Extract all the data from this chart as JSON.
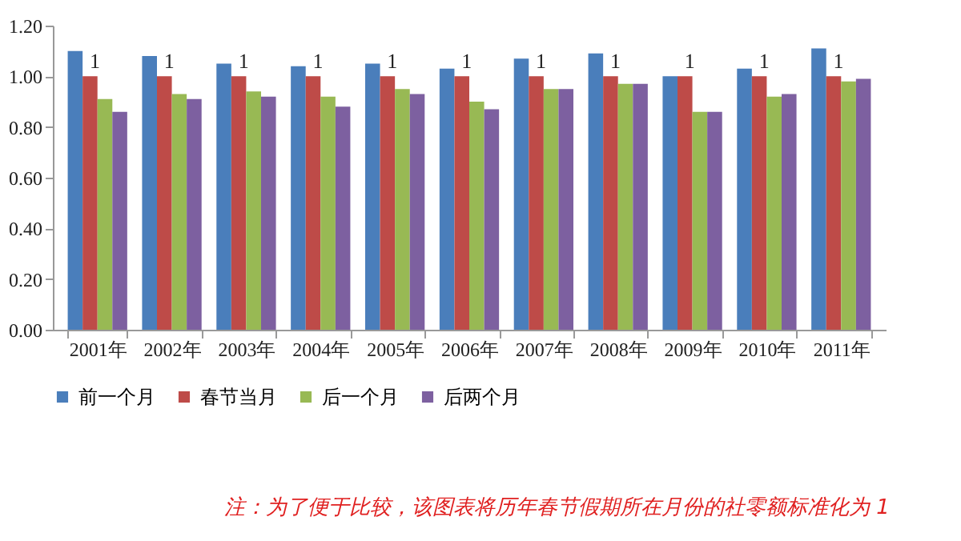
{
  "chart_data": {
    "type": "bar",
    "categories": [
      "2001年",
      "2002年",
      "2003年",
      "2004年",
      "2005年",
      "2006年",
      "2007年",
      "2008年",
      "2009年",
      "2010年",
      "2011年"
    ],
    "series": [
      {
        "name": "前一个月",
        "color": "#4a7ebb",
        "values": [
          1.1,
          1.08,
          1.05,
          1.04,
          1.05,
          1.03,
          1.07,
          1.09,
          1.0,
          1.03,
          1.11
        ]
      },
      {
        "name": "春节当月",
        "color": "#be4b48",
        "values": [
          1,
          1,
          1,
          1,
          1,
          1,
          1,
          1,
          1,
          1,
          1
        ],
        "value_labels": [
          "1",
          "1",
          "1",
          "1",
          "1",
          "1",
          "1",
          "1",
          "1",
          "1",
          "1"
        ]
      },
      {
        "name": "后一个月",
        "color": "#98b954",
        "values": [
          0.91,
          0.93,
          0.94,
          0.92,
          0.95,
          0.9,
          0.95,
          0.97,
          0.86,
          0.92,
          0.98
        ]
      },
      {
        "name": "后两个月",
        "color": "#7d60a0",
        "values": [
          0.86,
          0.91,
          0.92,
          0.88,
          0.93,
          0.87,
          0.95,
          0.97,
          0.86,
          0.93,
          0.99
        ]
      }
    ],
    "ylim": [
      0,
      1.2
    ],
    "yticks": [
      {
        "value": 0,
        "label": "0.00"
      },
      {
        "value": 0.2,
        "label": "0.20"
      },
      {
        "value": 0.4,
        "label": "0.40"
      },
      {
        "value": 0.6,
        "label": "0.60"
      },
      {
        "value": 0.8,
        "label": "0.80"
      },
      {
        "value": 1,
        "label": "1.00"
      },
      {
        "value": 1.2,
        "label": "1.20"
      }
    ],
    "grid": false,
    "legend": "bottom",
    "annotations": [
      "注：为了便于比较，该图表将历年春节假期所在月份的社零额标准化为 1"
    ]
  }
}
